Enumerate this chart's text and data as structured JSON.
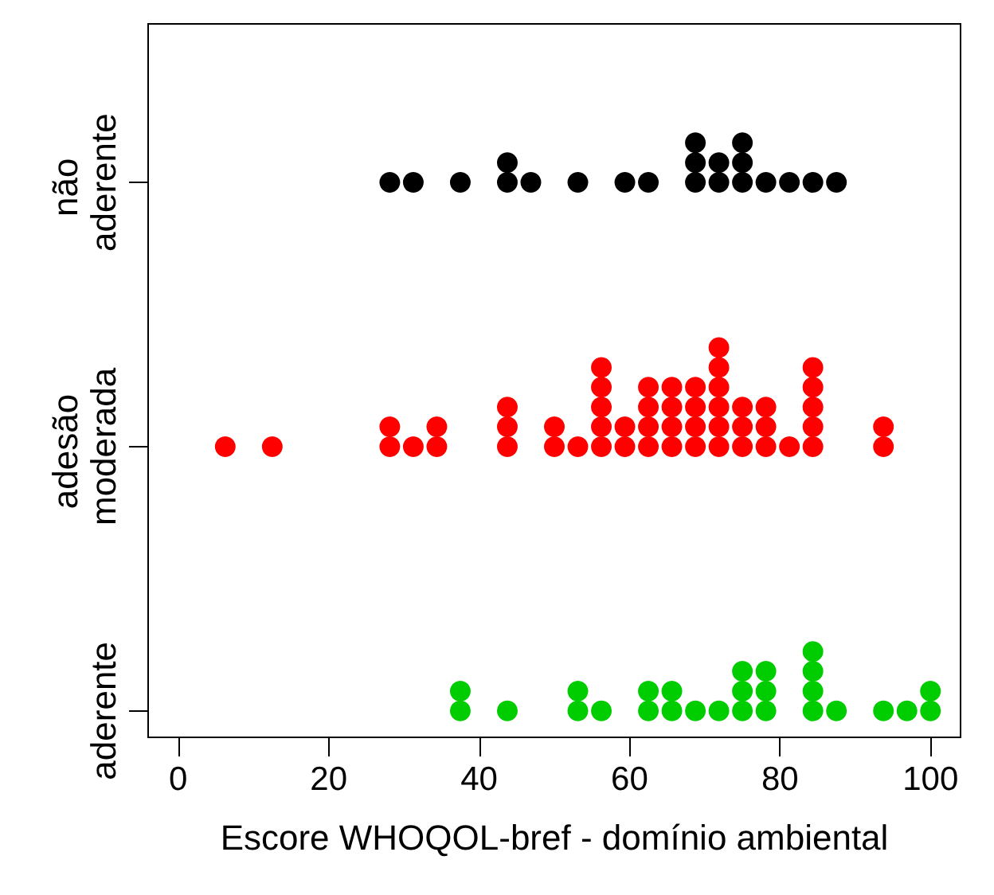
{
  "chart_data": {
    "type": "scatter",
    "orientation": "horizontal",
    "xlabel": "Escore WHOQOL-bref - domínio ambiental",
    "categories": [
      "não aderente",
      "adesão moderada",
      "aderente"
    ],
    "xlim": [
      -4,
      104
    ],
    "xticks": [
      0,
      20,
      40,
      60,
      80,
      100
    ],
    "grid": false,
    "marker": "circle",
    "series": [
      {
        "color": "#000000",
        "values": [
          28.125,
          31.25,
          37.5,
          43.75,
          43.75,
          46.875,
          53.125,
          59.375,
          62.5,
          68.75,
          68.75,
          68.75,
          71.875,
          71.875,
          75,
          75,
          75,
          78.125,
          81.25,
          84.375,
          87.5
        ],
        "x": [
          "não aderente",
          "não aderente",
          "não aderente",
          "não aderente",
          "não aderente",
          "não aderente",
          "não aderente",
          "não aderente",
          "não aderente",
          "não aderente",
          "não aderente",
          "não aderente",
          "não aderente",
          "não aderente",
          "não aderente",
          "não aderente",
          "não aderente",
          "não aderente",
          "não aderente",
          "não aderente",
          "não aderente"
        ]
      },
      {
        "color": "#ff0000",
        "values": [
          6.25,
          12.5,
          28.125,
          28.125,
          31.25,
          34.375,
          34.375,
          43.75,
          43.75,
          43.75,
          50,
          50,
          53.125,
          56.25,
          56.25,
          56.25,
          56.25,
          56.25,
          59.375,
          59.375,
          62.5,
          62.5,
          62.5,
          62.5,
          65.625,
          65.625,
          65.625,
          65.625,
          68.75,
          68.75,
          68.75,
          68.75,
          71.875,
          71.875,
          71.875,
          71.875,
          71.875,
          71.875,
          75,
          75,
          75,
          78.125,
          78.125,
          78.125,
          81.25,
          84.375,
          84.375,
          84.375,
          84.375,
          84.375,
          93.75,
          93.75
        ],
        "x": [
          "adesão moderada",
          "adesão moderada",
          "adesão moderada",
          "adesão moderada",
          "adesão moderada",
          "adesão moderada",
          "adesão moderada",
          "adesão moderada",
          "adesão moderada",
          "adesão moderada",
          "adesão moderada",
          "adesão moderada",
          "adesão moderada",
          "adesão moderada",
          "adesão moderada",
          "adesão moderada",
          "adesão moderada",
          "adesão moderada",
          "adesão moderada",
          "adesão moderada",
          "adesão moderada",
          "adesão moderada",
          "adesão moderada",
          "adesão moderada",
          "adesão moderada",
          "adesão moderada",
          "adesão moderada",
          "adesão moderada",
          "adesão moderada",
          "adesão moderada",
          "adesão moderada",
          "adesão moderada",
          "adesão moderada",
          "adesão moderada",
          "adesão moderada",
          "adesão moderada",
          "adesão moderada",
          "adesão moderada",
          "adesão moderada",
          "adesão moderada",
          "adesão moderada",
          "adesão moderada",
          "adesão moderada",
          "adesão moderada",
          "adesão moderada",
          "adesão moderada",
          "adesão moderada",
          "adesão moderada",
          "adesão moderada",
          "adesão moderada",
          "adesão moderada",
          "adesão moderada"
        ]
      },
      {
        "color": "#00cd00",
        "values": [
          37.5,
          37.5,
          43.75,
          53.125,
          53.125,
          56.25,
          62.5,
          62.5,
          65.625,
          65.625,
          68.75,
          71.875,
          75,
          75,
          75,
          78.125,
          78.125,
          78.125,
          84.375,
          84.375,
          84.375,
          84.375,
          87.5,
          93.75,
          96.875,
          100,
          100
        ],
        "x": [
          "aderente",
          "aderente",
          "aderente",
          "aderente",
          "aderente",
          "aderente",
          "aderente",
          "aderente",
          "aderente",
          "aderente",
          "aderente",
          "aderente",
          "aderente",
          "aderente",
          "aderente",
          "aderente",
          "aderente",
          "aderente",
          "aderente",
          "aderente",
          "aderente",
          "aderente",
          "aderente",
          "aderente",
          "aderente",
          "aderente",
          "aderente"
        ]
      }
    ]
  }
}
